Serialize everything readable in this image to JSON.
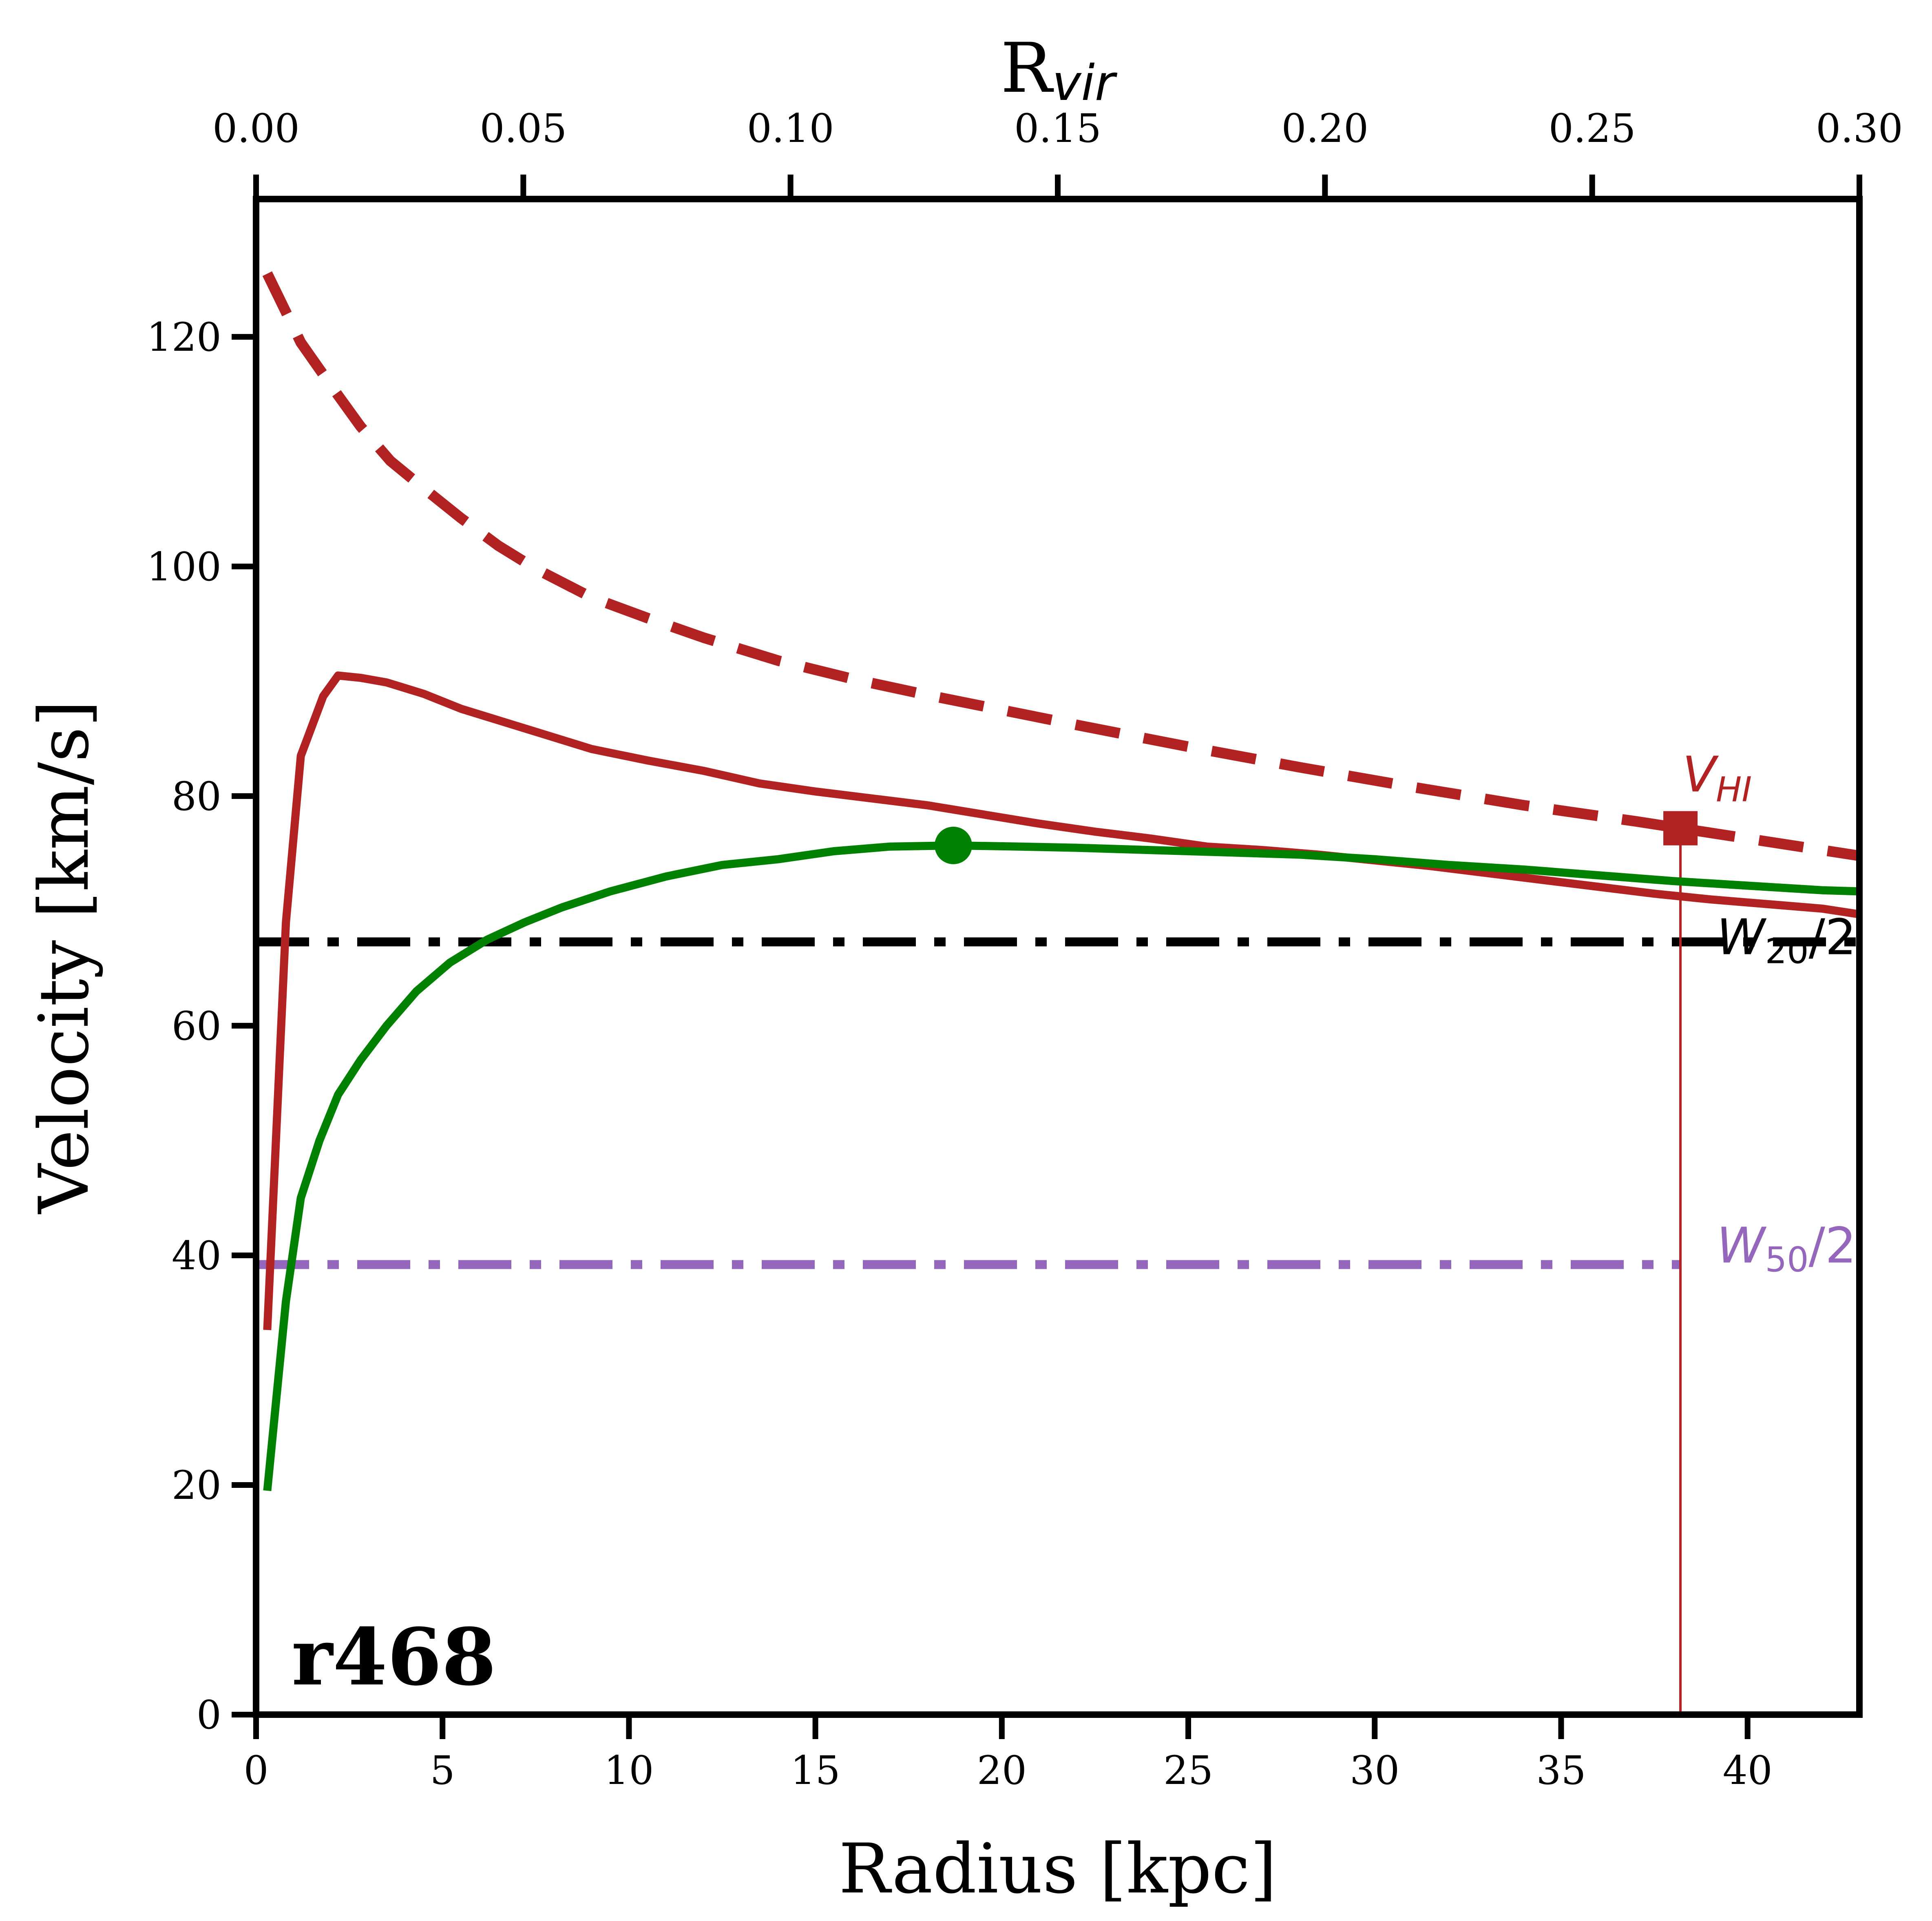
{
  "chart_data": {
    "type": "line",
    "panel_label": "r468",
    "xlabel": "Radius [kpc]",
    "ylabel": "Velocity [km/s]",
    "top_xlabel_main": "R",
    "top_xlabel_sub": "vir",
    "xlim": [
      0,
      43
    ],
    "ylim": [
      0,
      132
    ],
    "top_xlim": [
      0,
      0.3
    ],
    "x_ticks": [
      "0",
      "5",
      "10",
      "15",
      "20",
      "25",
      "30",
      "35",
      "40"
    ],
    "y_ticks": [
      "0",
      "20",
      "40",
      "60",
      "80",
      "100",
      "120"
    ],
    "top_x_ticks": [
      "0.00",
      "0.05",
      "0.10",
      "0.15",
      "0.20",
      "0.25",
      "0.30"
    ],
    "grid": false,
    "series": [
      {
        "style": "dashed",
        "color": "#b22222",
        "x": [
          0.3,
          1.2,
          2.0,
          2.8,
          3.6,
          4.5,
          5.5,
          6.5,
          7.5,
          9,
          10.5,
          12,
          14,
          16,
          18,
          20,
          22,
          25,
          28,
          31,
          34,
          37,
          40,
          43
        ],
        "y": [
          125.5,
          119.5,
          115.8,
          112.2,
          109.2,
          106.8,
          104.2,
          101.8,
          99.8,
          97.3,
          95.5,
          93.8,
          91.8,
          90.2,
          88.8,
          87.5,
          86.2,
          84.3,
          82.5,
          80.8,
          79.2,
          77.8,
          76.3,
          74.8
        ]
      },
      {
        "style": "solid",
        "color": "#b22222",
        "x": [
          0.3,
          0.8,
          1.2,
          1.8,
          2.2,
          2.8,
          3.5,
          4.5,
          5.5,
          6.5,
          7.5,
          9,
          10.5,
          12,
          13.5,
          15,
          16.5,
          18,
          19.5,
          21,
          22.5,
          24,
          25.5,
          27,
          28.5,
          30,
          31.5,
          33,
          34.5,
          36,
          37.5,
          39,
          40.5,
          42,
          43
        ],
        "y": [
          33.5,
          69,
          83.5,
          88.7,
          90.5,
          90.3,
          89.9,
          88.9,
          87.6,
          86.6,
          85.6,
          84.1,
          83.1,
          82.2,
          81.1,
          80.4,
          79.8,
          79.2,
          78.4,
          77.6,
          76.9,
          76.3,
          75.6,
          75.3,
          74.9,
          74.4,
          73.9,
          73.3,
          72.7,
          72.1,
          71.5,
          71.0,
          70.6,
          70.2,
          69.7
        ]
      },
      {
        "style": "solid",
        "color": "#008000",
        "x": [
          0.3,
          0.8,
          1.2,
          1.7,
          2.2,
          2.8,
          3.5,
          4.3,
          5.2,
          6.2,
          7.2,
          8.2,
          9.5,
          11,
          12.5,
          14,
          15.5,
          17,
          18.7,
          20.5,
          22,
          24,
          26,
          28,
          30,
          32,
          34,
          36,
          38,
          40,
          42,
          43
        ],
        "y": [
          19.5,
          36,
          45,
          50,
          54,
          57,
          60,
          63,
          65.5,
          67.5,
          69,
          70.3,
          71.7,
          73,
          74,
          74.5,
          75.2,
          75.6,
          75.7,
          75.6,
          75.5,
          75.3,
          75.1,
          74.9,
          74.5,
          74.0,
          73.6,
          73.1,
          72.6,
          72.2,
          71.8,
          71.7
        ]
      }
    ],
    "vmax_point": {
      "x": 18.7,
      "y": 75.7,
      "color": "#008000"
    },
    "vhi_point": {
      "x": 38.2,
      "y": 77.2,
      "color": "#b22222",
      "label_main": "V",
      "label_sub": "HI"
    },
    "vline": {
      "x": 38.2,
      "color": "#b22222"
    },
    "hlines": [
      {
        "name": "w20",
        "y": 67.3,
        "x_end": 43,
        "color": "#000000",
        "label_main": "W",
        "label_sub": "20",
        "label_tail": "/2"
      },
      {
        "name": "w50",
        "y": 39.2,
        "x_end": 38.2,
        "color": "#9467bd",
        "label_main": "W",
        "label_sub": "50",
        "label_tail": "/2"
      }
    ]
  }
}
